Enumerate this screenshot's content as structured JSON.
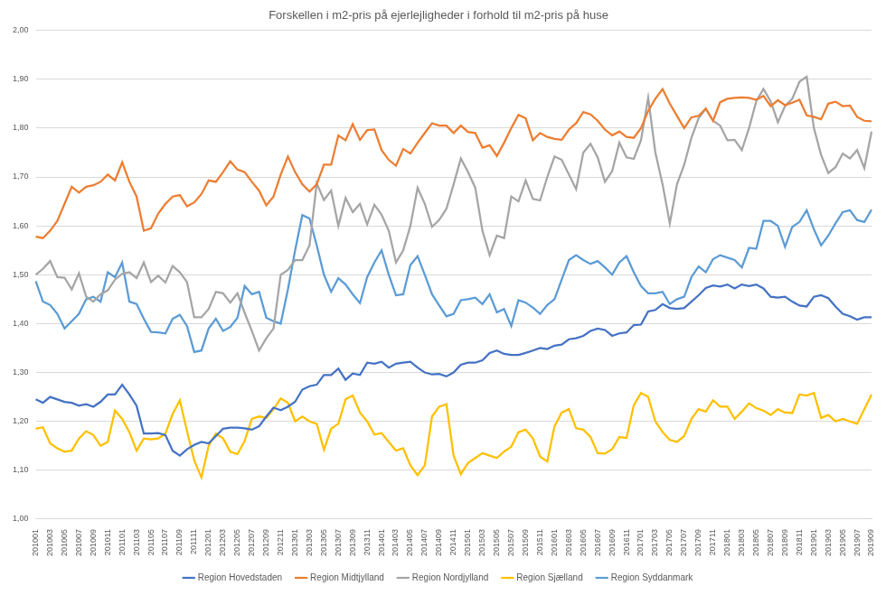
{
  "chart_data": {
    "type": "line",
    "title": "Forskellen i m2-pris på ejerlejligheder i forhold til m2-pris på huse",
    "categories": [
      "201001",
      null,
      "201003",
      null,
      "201005",
      null,
      "201007",
      null,
      "201009",
      null,
      "201011",
      null,
      "201101",
      null,
      "201103",
      null,
      "201105",
      null,
      "201107",
      null,
      "201109",
      null,
      "201111",
      null,
      "201201",
      null,
      "201203",
      null,
      "201205",
      null,
      "201207",
      null,
      "201209",
      null,
      "201211",
      null,
      "201301",
      null,
      "201303",
      null,
      "201305",
      null,
      "201307",
      null,
      "201309",
      null,
      "201311",
      null,
      "201401",
      null,
      "201403",
      null,
      "201405",
      null,
      "201407",
      null,
      "201409",
      null,
      "201411",
      null,
      "201501",
      null,
      "201503",
      null,
      "201505",
      null,
      "201507",
      null,
      "201509",
      null,
      "201511",
      null,
      "201601",
      null,
      "201603",
      null,
      "201605",
      null,
      "201607",
      null,
      "201609",
      null,
      "201611",
      null,
      "201701",
      null,
      "201703",
      null,
      "201705",
      null,
      "201707",
      null,
      "201709",
      null,
      "201711",
      null,
      "201801",
      null,
      "201803",
      null,
      "201805",
      null,
      "201807",
      null,
      "201809",
      null,
      "201811",
      null,
      "201901",
      null,
      "201903",
      null,
      "201905",
      null,
      "201907",
      null,
      "201909"
    ],
    "series": [
      {
        "name": "Region Hovedstaden",
        "color": "#4472c4",
        "values": [
          1.245,
          1.238,
          1.25,
          1.245,
          1.24,
          1.238,
          1.232,
          1.235,
          1.23,
          1.24,
          1.255,
          1.255,
          1.275,
          1.255,
          1.232,
          1.175,
          1.175,
          1.176,
          1.172,
          1.14,
          1.13,
          1.143,
          1.152,
          1.158,
          1.155,
          1.17,
          1.185,
          1.187,
          1.187,
          1.186,
          1.183,
          1.19,
          1.21,
          1.228,
          1.223,
          1.23,
          1.24,
          1.265,
          1.272,
          1.275,
          1.295,
          1.295,
          1.308,
          1.285,
          1.298,
          1.295,
          1.32,
          1.318,
          1.322,
          1.31,
          1.318,
          1.32,
          1.322,
          1.31,
          1.3,
          1.296,
          1.297,
          1.292,
          1.3,
          1.316,
          1.32,
          1.32,
          1.325,
          1.34,
          1.345,
          1.338,
          1.336,
          1.336,
          1.34,
          1.345,
          1.35,
          1.348,
          1.355,
          1.357,
          1.368,
          1.37,
          1.375,
          1.385,
          1.39,
          1.387,
          1.375,
          1.38,
          1.382,
          1.397,
          1.398,
          1.425,
          1.428,
          1.44,
          1.432,
          1.43,
          1.432,
          1.445,
          1.458,
          1.473,
          1.478,
          1.476,
          1.48,
          1.472,
          1.48,
          1.477,
          1.48,
          1.472,
          1.455,
          1.453,
          1.455,
          1.445,
          1.437,
          1.435,
          1.455,
          1.458,
          1.452,
          1.435,
          1.42,
          1.415,
          1.408,
          1.413,
          1.413
        ]
      },
      {
        "name": "Region Midtjylland",
        "color": "#ed7d31",
        "values": [
          1.578,
          1.575,
          1.59,
          1.61,
          1.645,
          1.68,
          1.668,
          1.68,
          1.683,
          1.69,
          1.705,
          1.693,
          1.73,
          1.69,
          1.66,
          1.59,
          1.595,
          1.625,
          1.645,
          1.66,
          1.663,
          1.64,
          1.648,
          1.665,
          1.693,
          1.69,
          1.71,
          1.732,
          1.715,
          1.71,
          1.69,
          1.672,
          1.642,
          1.66,
          1.705,
          1.742,
          1.71,
          1.685,
          1.67,
          1.685,
          1.725,
          1.725,
          1.785,
          1.775,
          1.808,
          1.776,
          1.796,
          1.797,
          1.755,
          1.735,
          1.723,
          1.757,
          1.748,
          1.77,
          1.79,
          1.81,
          1.805,
          1.805,
          1.79,
          1.805,
          1.792,
          1.79,
          1.76,
          1.765,
          1.743,
          1.77,
          1.8,
          1.827,
          1.82,
          1.775,
          1.79,
          1.782,
          1.778,
          1.776,
          1.797,
          1.81,
          1.833,
          1.828,
          1.815,
          1.797,
          1.785,
          1.793,
          1.782,
          1.78,
          1.8,
          1.835,
          1.86,
          1.88,
          1.85,
          1.825,
          1.8,
          1.822,
          1.825,
          1.84,
          1.815,
          1.853,
          1.86,
          1.862,
          1.863,
          1.862,
          1.858,
          1.866,
          1.845,
          1.857,
          1.847,
          1.852,
          1.858,
          1.826,
          1.823,
          1.818,
          1.85,
          1.854,
          1.845,
          1.846,
          1.823,
          1.815,
          1.814
        ]
      },
      {
        "name": "Region Nordjylland",
        "color": "#a5a5a5",
        "values": [
          1.5,
          1.512,
          1.528,
          1.495,
          1.494,
          1.47,
          1.503,
          1.455,
          1.445,
          1.46,
          1.468,
          1.49,
          1.502,
          1.505,
          1.493,
          1.525,
          1.485,
          1.498,
          1.484,
          1.518,
          1.505,
          1.485,
          1.413,
          1.413,
          1.43,
          1.465,
          1.462,
          1.443,
          1.462,
          1.422,
          1.385,
          1.345,
          1.37,
          1.39,
          1.5,
          1.51,
          1.53,
          1.53,
          1.56,
          1.687,
          1.653,
          1.672,
          1.6,
          1.657,
          1.628,
          1.645,
          1.603,
          1.643,
          1.623,
          1.59,
          1.525,
          1.55,
          1.6,
          1.678,
          1.645,
          1.598,
          1.612,
          1.635,
          1.685,
          1.738,
          1.71,
          1.678,
          1.59,
          1.54,
          1.58,
          1.575,
          1.66,
          1.65,
          1.693,
          1.655,
          1.652,
          1.7,
          1.742,
          1.735,
          1.705,
          1.675,
          1.75,
          1.768,
          1.74,
          1.69,
          1.712,
          1.77,
          1.74,
          1.737,
          1.775,
          1.862,
          1.75,
          1.685,
          1.605,
          1.685,
          1.725,
          1.78,
          1.82,
          1.84,
          1.815,
          1.805,
          1.775,
          1.776,
          1.755,
          1.8,
          1.855,
          1.88,
          1.855,
          1.812,
          1.845,
          1.86,
          1.895,
          1.905,
          1.8,
          1.745,
          1.708,
          1.72,
          1.748,
          1.738,
          1.755,
          1.718,
          1.793
        ]
      },
      {
        "name": "Region Sjælland",
        "color": "#ffc000",
        "values": [
          1.185,
          1.188,
          1.155,
          1.145,
          1.138,
          1.14,
          1.165,
          1.18,
          1.172,
          1.15,
          1.158,
          1.222,
          1.205,
          1.178,
          1.14,
          1.165,
          1.163,
          1.165,
          1.175,
          1.215,
          1.243,
          1.18,
          1.12,
          1.085,
          1.15,
          1.175,
          1.165,
          1.138,
          1.133,
          1.16,
          1.205,
          1.21,
          1.207,
          1.225,
          1.247,
          1.238,
          1.2,
          1.21,
          1.2,
          1.195,
          1.142,
          1.185,
          1.195,
          1.245,
          1.253,
          1.218,
          1.2,
          1.173,
          1.176,
          1.158,
          1.14,
          1.145,
          1.11,
          1.09,
          1.11,
          1.21,
          1.23,
          1.235,
          1.13,
          1.092,
          1.115,
          1.125,
          1.135,
          1.13,
          1.125,
          1.138,
          1.148,
          1.178,
          1.183,
          1.165,
          1.128,
          1.118,
          1.19,
          1.218,
          1.225,
          1.186,
          1.183,
          1.168,
          1.135,
          1.134,
          1.143,
          1.168,
          1.166,
          1.233,
          1.258,
          1.25,
          1.2,
          1.178,
          1.162,
          1.158,
          1.17,
          1.205,
          1.225,
          1.22,
          1.243,
          1.23,
          1.23,
          1.205,
          1.22,
          1.237,
          1.227,
          1.222,
          1.213,
          1.225,
          1.218,
          1.217,
          1.255,
          1.253,
          1.258,
          1.207,
          1.213,
          1.2,
          1.205,
          1.2,
          1.195,
          1.225,
          1.255
        ]
      },
      {
        "name": "Region Syddanmark",
        "color": "#5b9bd5",
        "values": [
          1.487,
          1.445,
          1.438,
          1.42,
          1.39,
          1.405,
          1.42,
          1.45,
          1.455,
          1.445,
          1.505,
          1.495,
          1.525,
          1.445,
          1.44,
          1.41,
          1.383,
          1.382,
          1.38,
          1.41,
          1.418,
          1.395,
          1.342,
          1.345,
          1.39,
          1.41,
          1.385,
          1.393,
          1.412,
          1.477,
          1.46,
          1.465,
          1.412,
          1.405,
          1.4,
          1.47,
          1.55,
          1.622,
          1.615,
          1.56,
          1.5,
          1.465,
          1.493,
          1.48,
          1.46,
          1.442,
          1.495,
          1.525,
          1.55,
          1.5,
          1.458,
          1.46,
          1.52,
          1.538,
          1.5,
          1.46,
          1.437,
          1.415,
          1.42,
          1.448,
          1.45,
          1.453,
          1.44,
          1.46,
          1.423,
          1.43,
          1.395,
          1.448,
          1.443,
          1.433,
          1.42,
          1.438,
          1.45,
          1.49,
          1.53,
          1.54,
          1.53,
          1.522,
          1.528,
          1.515,
          1.5,
          1.525,
          1.538,
          1.505,
          1.477,
          1.462,
          1.462,
          1.465,
          1.44,
          1.45,
          1.455,
          1.495,
          1.517,
          1.505,
          1.532,
          1.54,
          1.535,
          1.53,
          1.515,
          1.555,
          1.553,
          1.61,
          1.61,
          1.6,
          1.557,
          1.598,
          1.608,
          1.632,
          1.593,
          1.56,
          1.58,
          1.605,
          1.628,
          1.632,
          1.612,
          1.608,
          1.633
        ]
      }
    ],
    "ylim": [
      1,
      2
    ],
    "yticks": [
      {
        "value": 1,
        "label": "1,00"
      },
      {
        "value": 1.1,
        "label": "1,10"
      },
      {
        "value": 1.2,
        "label": "1,20"
      },
      {
        "value": 1.3,
        "label": "1,30"
      },
      {
        "value": 1.4,
        "label": "1,40"
      },
      {
        "value": 1.5,
        "label": "1,50"
      },
      {
        "value": 1.6,
        "label": "1,60"
      },
      {
        "value": 1.7,
        "label": "1,70"
      },
      {
        "value": 1.8,
        "label": "1,80"
      },
      {
        "value": 1.9,
        "label": "1,90"
      },
      {
        "value": 2,
        "label": "2,00"
      }
    ],
    "grid": true,
    "legend": "bottom"
  }
}
